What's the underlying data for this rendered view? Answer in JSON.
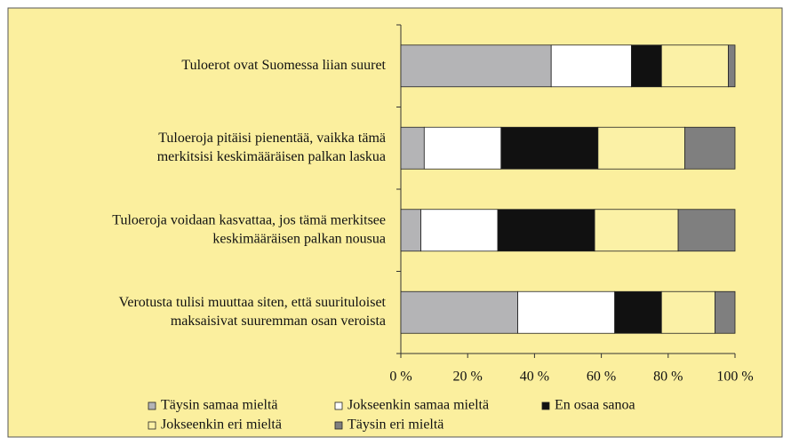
{
  "chart_data": {
    "type": "stacked-bar-horizontal",
    "categories": [
      [
        "Tuloerot ovat Suomessa liian suuret"
      ],
      [
        "Tuloeroja pitäisi pienentää, vaikka tämä",
        "merkitsisi keskimääräisen palkan laskua"
      ],
      [
        "Tuloeroja voidaan kasvattaa, jos tämä merkitsee",
        "keskimääräisen palkan nousua"
      ],
      [
        "Verotusta tulisi muuttaa siten, että suurituloiset",
        "maksaisivat suuremman osan veroista"
      ]
    ],
    "series": [
      {
        "name": "Täysin samaa mieltä",
        "color": "#b4b4b6",
        "values": [
          45,
          7,
          6,
          35
        ]
      },
      {
        "name": "Jokseenkin samaa mieltä",
        "color": "#ffffff",
        "values": [
          24,
          23,
          23,
          29
        ]
      },
      {
        "name": "En osaa sanoa",
        "color": "#111111",
        "values": [
          9,
          29,
          29,
          14
        ]
      },
      {
        "name": "Jokseenkin eri mieltä",
        "color": "#fbf1a6",
        "values": [
          20,
          26,
          25,
          16
        ]
      },
      {
        "name": "Täysin eri mieltä",
        "color": "#7f7f7f",
        "values": [
          2,
          15,
          17,
          6
        ]
      }
    ],
    "xlim": [
      0,
      100
    ],
    "xticks": [
      {
        "value": 0,
        "label": "0 %"
      },
      {
        "value": 20,
        "label": "20 %"
      },
      {
        "value": 40,
        "label": "40 %"
      },
      {
        "value": 60,
        "label": "60 %"
      },
      {
        "value": 80,
        "label": "80 %"
      },
      {
        "value": 100,
        "label": "100 %"
      }
    ]
  }
}
